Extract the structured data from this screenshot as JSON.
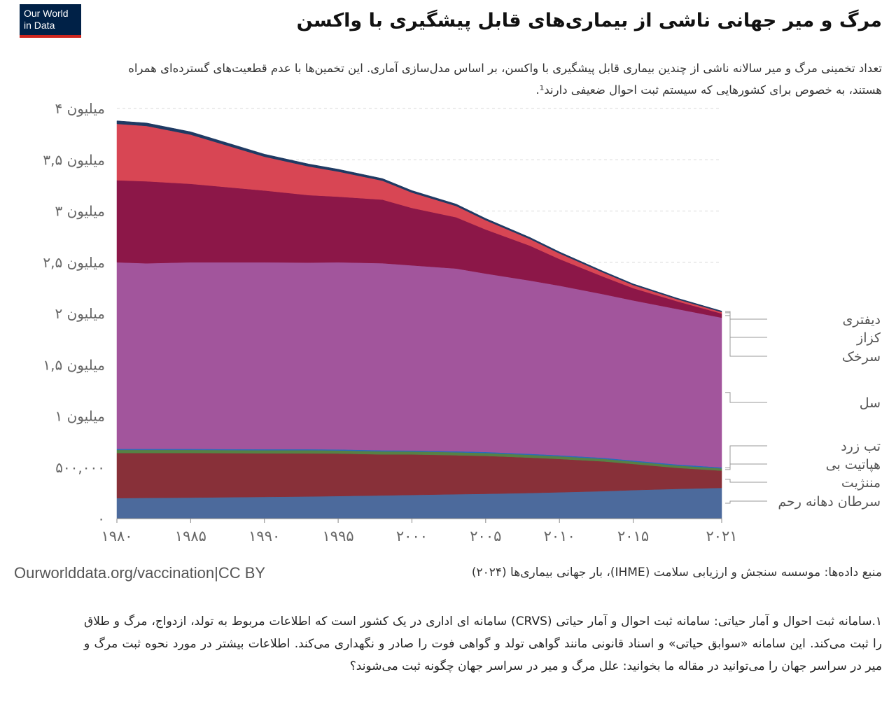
{
  "logo": {
    "line1": "Our World",
    "line2": "in Data"
  },
  "title": "مرگ و میر جهانی ناشی از بیماری‌های قابل پیشگیری با واکسن",
  "subtitle": "تعداد تخمینی مرگ و میر سالانه ناشی از چندین بیماری قابل پیشگیری با واکسن، بر اساس مدل‌سازی آماری. این تخمین‌ها با عدم قطعیت‌های گسترده‌ای همراه هستند، به خصوص برای کشورهایی که سیستم ثبت احوال ضعیفی دارند¹.",
  "source": "منبع داده‌ها: موسسه سنجش و ارزیابی سلامت (IHME)، بار جهانی بیماری‌ها (۲۰۲۴)",
  "license": "Ourworlddata.org/vaccination|CC BY",
  "footnote": "۱.سامانه ثبت احوال و آمار حیاتی: سامانه ثبت احوال و آمار حیاتی (CRVS) سامانه ای اداری در یک کشور است که اطلاعات مربوط به تولد، ازدواج، مرگ و طلاق را ثبت می‌کند. این سامانه «سوابق حیاتی» و اسناد قانونی مانند گواهی تولد و گواهی فوت را صادر و نگهداری می‌کند. اطلاعات بیشتر در مورد نحوه ثبت مرگ و میر در سراسر جهان را می‌توانید در مقاله ما بخوانید: علل مرگ و میر در سراسر جهان چگونه ثبت می‌شوند؟",
  "chart_data": {
    "type": "area",
    "stacked": true,
    "ylim": [
      0,
      4000000
    ],
    "xlim": [
      1980,
      2021
    ],
    "y_ticks": [
      {
        "value": 0,
        "label": "۰"
      },
      {
        "value": 500000,
        "label": "۵۰۰,۰۰۰"
      },
      {
        "value": 1000000,
        "label": "۱ میلیون"
      },
      {
        "value": 1500000,
        "label": "۱,۵ میلیون"
      },
      {
        "value": 2000000,
        "label": "۲ میلیون"
      },
      {
        "value": 2500000,
        "label": "۲,۵ میلیون"
      },
      {
        "value": 3000000,
        "label": "۳ میلیون"
      },
      {
        "value": 3500000,
        "label": "۳,۵ میلیون"
      },
      {
        "value": 4000000,
        "label": "۴ میلیون"
      }
    ],
    "x_ticks": [
      {
        "value": 1980,
        "label": "۱۹۸۰"
      },
      {
        "value": 1985,
        "label": "۱۹۸۵"
      },
      {
        "value": 1990,
        "label": "۱۹۹۰"
      },
      {
        "value": 1995,
        "label": "۱۹۹۵"
      },
      {
        "value": 2000,
        "label": "۲۰۰۰"
      },
      {
        "value": 2005,
        "label": "۲۰۰۵"
      },
      {
        "value": 2010,
        "label": "۲۰۱۰"
      },
      {
        "value": 2015,
        "label": "۲۰۱۵"
      },
      {
        "value": 2021,
        "label": "۲۰۲۱"
      }
    ],
    "grid": true,
    "legend": "right",
    "x": [
      1980,
      1982,
      1985,
      1990,
      1993,
      1995,
      1998,
      2000,
      2003,
      2005,
      2008,
      2010,
      2013,
      2015,
      2018,
      2021
    ],
    "series": [
      {
        "name": "سرطان دهانه رحم",
        "color": "#4C6A9C",
        "values": [
          200000,
          202000,
          205000,
          212000,
          216000,
          220000,
          226000,
          231000,
          238000,
          242000,
          250000,
          257000,
          268000,
          278000,
          290000,
          300000
        ]
      },
      {
        "name": "مننژیت",
        "color": "#883039",
        "values": [
          440000,
          438000,
          435000,
          425000,
          420000,
          415000,
          400000,
          395000,
          380000,
          370000,
          345000,
          325000,
          290000,
          255000,
          205000,
          168000
        ]
      },
      {
        "name": "هپاتیت بی",
        "color": "#578145",
        "values": [
          30000,
          30000,
          30000,
          30000,
          31000,
          30000,
          30000,
          29000,
          29000,
          28000,
          27000,
          26000,
          25000,
          24000,
          23000,
          22000
        ]
      },
      {
        "name": "تب زرد",
        "color": "#286BBB",
        "values": [
          10000,
          10000,
          10000,
          10000,
          10000,
          10000,
          10000,
          10000,
          10000,
          10000,
          10000,
          10000,
          10000,
          10000,
          10000,
          10000
        ]
      },
      {
        "name": "سل",
        "color": "#A2559C",
        "values": [
          1820000,
          1810000,
          1820000,
          1823000,
          1820000,
          1825000,
          1825000,
          1805000,
          1782000,
          1740000,
          1690000,
          1654000,
          1595000,
          1561000,
          1516000,
          1460000
        ]
      },
      {
        "name": "سرخک",
        "color": "#8C1748",
        "values": [
          800000,
          800000,
          765000,
          700000,
          658000,
          640000,
          620000,
          560000,
          500000,
          430000,
          340000,
          260000,
          170000,
          120000,
          75000,
          40000
        ]
      },
      {
        "name": "کزاز",
        "color": "#D84654",
        "values": [
          550000,
          540000,
          480000,
          330000,
          280000,
          245000,
          185000,
          150000,
          110000,
          90000,
          65000,
          55000,
          40000,
          30000,
          20000,
          15000
        ]
      },
      {
        "name": "دیفتری",
        "color": "#1F3A63",
        "values": [
          30000,
          29000,
          28000,
          25000,
          24000,
          23000,
          21000,
          20000,
          19000,
          18000,
          16000,
          15000,
          13000,
          12000,
          11000,
          10000
        ]
      }
    ]
  }
}
